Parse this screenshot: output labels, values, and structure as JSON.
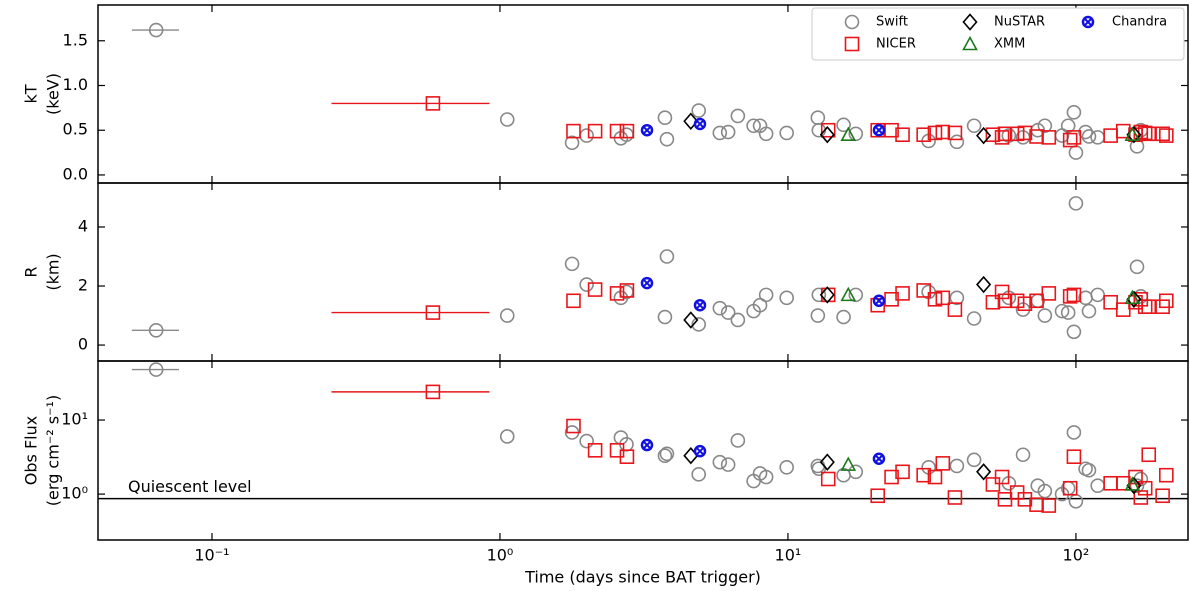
{
  "chart_data": {
    "type": "scatter",
    "xlabel": "Time (days since BAT trigger)",
    "log_x": true,
    "xlim": [
      0.0402,
      245
    ],
    "xticks": [
      {
        "value": 0.1,
        "label": "10⁻¹"
      },
      {
        "value": 1,
        "label": "10⁰"
      },
      {
        "value": 10,
        "label": "10¹"
      },
      {
        "value": 100,
        "label": "10²"
      }
    ],
    "legend": "upper right",
    "panels": [
      {
        "ylabel": [
          "kT",
          "(keV)"
        ],
        "log_y": false,
        "ylim": [
          -0.09,
          1.9
        ],
        "yticks": [
          {
            "value": 0,
            "label": "0.0"
          },
          0.5,
          {
            "value": 1,
            "label": "1.0"
          },
          1.5
        ]
      },
      {
        "ylabel": [
          "R",
          "(km)"
        ],
        "log_y": false,
        "ylim": [
          -0.54,
          5.49
        ],
        "yticks": [
          0,
          2,
          4
        ]
      },
      {
        "ylabel": [
          "Obs Flux",
          "(erg cm⁻² s⁻¹)"
        ],
        "log_y": true,
        "ylim": [
          0.24,
          62.7
        ],
        "yticks": [
          {
            "value": 1,
            "label": "10⁰"
          },
          {
            "value": 10,
            "label": "10¹"
          }
        ],
        "hline": {
          "value": 0.87,
          "label": "Quiescent level"
        }
      }
    ],
    "series": [
      {
        "name": "Swift",
        "color": "#888888",
        "marker": "circle",
        "x": [
          0.064,
          1.06,
          1.78,
          2.0,
          2.63,
          2.75,
          3.74,
          3.8,
          4.9,
          5.8,
          6.2,
          6.7,
          7.6,
          8.0,
          8.4,
          9.9,
          12.7,
          12.8,
          15.6,
          17.2,
          30.8,
          38.6,
          44.3,
          58.5,
          65.5,
          73.7,
          78,
          89.5,
          94,
          98.4,
          100,
          108,
          111,
          119,
          163,
          168
        ],
        "values": [
          [
            1.62,
            0.62,
            0.36,
            0.44,
            0.41,
            0.45,
            0.64,
            0.4,
            0.72,
            0.47,
            0.48,
            0.66,
            0.55,
            0.55,
            0.46,
            0.47,
            0.64,
            0.5,
            0.56,
            0.46,
            0.38,
            0.37,
            0.55,
            0.44,
            0.42,
            0.5,
            0.55,
            0.44,
            0.55,
            0.7,
            0.25,
            0.48,
            0.43,
            0.42,
            0.32,
            0.5
          ],
          [
            0.5,
            1.0,
            2.75,
            2.05,
            1.6,
            1.8,
            0.95,
            3.0,
            0.7,
            1.25,
            1.1,
            0.85,
            1.15,
            1.35,
            1.7,
            1.6,
            1.0,
            1.7,
            0.95,
            1.7,
            1.8,
            1.6,
            0.9,
            1.6,
            1.2,
            1.5,
            1.0,
            1.15,
            1.1,
            0.45,
            4.8,
            1.6,
            1.15,
            1.7,
            2.65,
            1.65
          ],
          [
            48,
            6.0,
            6.8,
            5.2,
            5.8,
            4.7,
            3.3,
            3.5,
            1.85,
            2.7,
            2.5,
            5.3,
            1.5,
            1.9,
            1.7,
            2.3,
            2.4,
            2.2,
            1.8,
            2.0,
            2.3,
            2.4,
            2.9,
            1.4,
            3.4,
            1.3,
            1.1,
            1.0,
            1.2,
            6.8,
            0.8,
            2.2,
            2.1,
            1.3,
            1.3,
            1.6
          ]
        ],
        "xspans": [
          {
            "index": 0,
            "range": [
              0.0527,
              0.0768
            ]
          }
        ]
      },
      {
        "name": "NICER",
        "color": "#e8161b",
        "marker": "square",
        "x": [
          0.585,
          1.8,
          2.14,
          2.55,
          2.76,
          13.8,
          20.5,
          22.9,
          25,
          29.6,
          32.4,
          34.5,
          38,
          51.5,
          55.4,
          56.7,
          62.5,
          66.5,
          73,
          80.5,
          95.5,
          98.4,
          132,
          146,
          161,
          168,
          179,
          174,
          206,
          200
        ],
        "values": [
          [
            0.8,
            0.49,
            0.49,
            0.49,
            0.49,
            0.5,
            0.5,
            0.5,
            0.45,
            0.45,
            0.47,
            0.48,
            0.47,
            0.45,
            0.42,
            0.46,
            0.46,
            0.47,
            0.43,
            0.42,
            0.39,
            0.42,
            0.44,
            0.49,
            0.45,
            0.48,
            0.46,
            0.47,
            0.44,
            0.46
          ],
          [
            1.1,
            1.5,
            1.88,
            1.75,
            1.85,
            1.7,
            1.35,
            1.55,
            1.75,
            1.85,
            1.55,
            1.6,
            1.2,
            1.45,
            1.8,
            1.5,
            1.5,
            1.4,
            1.5,
            1.75,
            1.65,
            1.7,
            1.45,
            1.2,
            1.45,
            1.55,
            1.3,
            1.3,
            1.5,
            1.3
          ],
          [
            24,
            8.3,
            3.9,
            3.9,
            3.2,
            1.6,
            0.95,
            1.7,
            2.0,
            1.8,
            1.7,
            2.6,
            0.9,
            1.35,
            1.7,
            0.85,
            1.05,
            0.85,
            0.72,
            0.7,
            1.2,
            3.2,
            1.4,
            1.4,
            1.7,
            0.9,
            3.4,
            1.2,
            1.8,
            0.95
          ]
        ],
        "xspans": [
          {
            "index": 0,
            "range": [
              0.26,
              0.92
            ]
          }
        ]
      },
      {
        "name": "NuSTAR",
        "color": "#000000",
        "marker": "diamond",
        "x": [
          4.6,
          13.7,
          47.8,
          159
        ],
        "values": [
          [
            0.6,
            0.45,
            0.44,
            0.45
          ],
          [
            0.85,
            1.7,
            2.05,
            1.55
          ],
          [
            3.3,
            2.7,
            2.0,
            1.3
          ]
        ]
      },
      {
        "name": "XMM",
        "color": "#1a7a1a",
        "marker": "triangle",
        "x": [
          16.2,
          157
        ],
        "values": [
          [
            0.45,
            0.45
          ],
          [
            1.7,
            1.6
          ],
          [
            2.5,
            1.35
          ]
        ]
      },
      {
        "name": "Chandra",
        "color": "#1010e0",
        "marker": "xcircle",
        "x": [
          3.24,
          4.95,
          20.7
        ],
        "values": [
          [
            0.5,
            0.57,
            0.5
          ],
          [
            2.1,
            1.35,
            1.5
          ],
          [
            4.6,
            3.8,
            3.0
          ]
        ]
      }
    ]
  }
}
